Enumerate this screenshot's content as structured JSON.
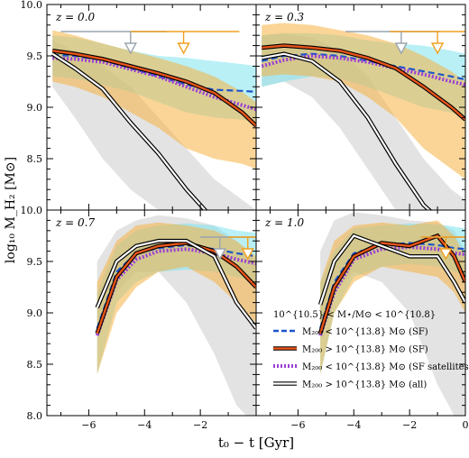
{
  "chart_data": {
    "type": "line",
    "xlabel": "t₀ − t [Gyr]",
    "ylabel": "log₁₀ M_H₂ [M⊙]",
    "xlim": [
      -7.5,
      0
    ],
    "ylim": [
      8.0,
      10.0
    ],
    "x_ticks": [
      -6,
      -4,
      -2,
      0
    ],
    "y_ticks": [
      8.0,
      8.5,
      9.0,
      9.5,
      10.0
    ],
    "grid": false,
    "colors": {
      "sf": "#1f55c8",
      "massive_sf": "#e8541a",
      "massive_sf_band": "#f5b342",
      "sf_band": "#7fe3ef",
      "satellites": "#9b3fd4",
      "all": "#000000",
      "all_band": "#d9d9d9",
      "arrow_grey": "#9aa4ad",
      "arrow_orange": "#f0a020"
    },
    "legend": {
      "placement": "bottom-right of lower-right panel",
      "title": "10^{10.5} < M⋆/M⊙ < 10^{10.8}",
      "entries": [
        {
          "key": "sf",
          "label": "M₂₀₀ < 10^{13.8} M⊙ (SF)"
        },
        {
          "key": "massive_sf",
          "label": "M₂₀₀ > 10^{13.8} M⊙ (SF)"
        },
        {
          "key": "satellites",
          "label": "M₂₀₀ < 10^{13.8} M⊙ (SF satellites)"
        },
        {
          "key": "all",
          "label": "M₂₀₀ > 10^{13.8} M⊙ (all)"
        }
      ]
    },
    "panels": [
      {
        "label": "z = 0.0",
        "arrows": {
          "grey_x": -4.5,
          "grey_range": [
            -7,
            -3.2
          ],
          "orange_x": -2.6,
          "orange_range": [
            -4.5,
            -0.6
          ]
        },
        "x": [
          -7.3,
          -6.5,
          -5.5,
          -4.5,
          -3.5,
          -2.5,
          -1.5,
          -0.5,
          0
        ],
        "series": {
          "sf": [
            9.51,
            9.5,
            9.46,
            9.38,
            9.3,
            9.22,
            9.17,
            9.16,
            9.15
          ],
          "massive_sf": [
            9.55,
            9.52,
            9.47,
            9.4,
            9.33,
            9.25,
            9.14,
            8.95,
            8.82
          ],
          "satellites": [
            9.48,
            9.47,
            9.44,
            9.37,
            9.3,
            9.2,
            9.1,
            9.02,
            8.98
          ],
          "all": [
            9.52,
            9.38,
            9.18,
            8.85,
            8.55,
            8.2,
            7.9,
            7.7,
            7.6
          ]
        },
        "bands": {
          "sf": {
            "lo": [
              9.3,
              9.28,
              9.22,
              9.15,
              9.05,
              8.95,
              8.9,
              8.88,
              8.85
            ],
            "hi": [
              9.7,
              9.68,
              9.62,
              9.55,
              9.5,
              9.48,
              9.45,
              9.42,
              9.4
            ]
          },
          "massive_sf": {
            "lo": [
              9.25,
              9.2,
              9.1,
              8.95,
              8.8,
              8.6,
              8.5,
              8.45,
              8.4
            ],
            "hi": [
              9.75,
              9.7,
              9.62,
              9.55,
              9.48,
              9.4,
              9.3,
              9.15,
              9.05
            ]
          },
          "all": {
            "lo": [
              9.2,
              8.9,
              8.5,
              8.2,
              8.0,
              7.8,
              7.7,
              7.6,
              7.55
            ],
            "hi": [
              9.65,
              9.55,
              9.4,
              9.2,
              8.9,
              8.6,
              8.3,
              8.1,
              8.0
            ]
          }
        }
      },
      {
        "label": "z = 0.3",
        "arrows": {
          "grey_x": -2.3,
          "grey_range": [
            -4.3,
            -0.9
          ],
          "orange_x": -1.0,
          "orange_range": [
            -2.7,
            0
          ]
        },
        "x": [
          -7.3,
          -6.5,
          -5.5,
          -4.5,
          -3.5,
          -2.5,
          -1.5,
          -0.5,
          0
        ],
        "series": {
          "sf": [
            9.45,
            9.5,
            9.52,
            9.5,
            9.45,
            9.4,
            9.35,
            9.3,
            9.27
          ],
          "massive_sf": [
            9.58,
            9.6,
            9.58,
            9.55,
            9.48,
            9.38,
            9.2,
            9.0,
            8.88
          ],
          "satellites": [
            9.4,
            9.46,
            9.5,
            9.48,
            9.44,
            9.38,
            9.32,
            9.25,
            9.22
          ],
          "all": [
            9.48,
            9.52,
            9.45,
            9.25,
            8.9,
            8.45,
            8.05,
            7.8,
            7.7
          ]
        },
        "bands": {
          "sf": {
            "lo": [
              9.2,
              9.25,
              9.3,
              9.28,
              9.2,
              9.1,
              9.0,
              8.95,
              8.9
            ],
            "hi": [
              9.7,
              9.72,
              9.72,
              9.7,
              9.65,
              9.62,
              9.6,
              9.55,
              9.52
            ]
          },
          "massive_sf": {
            "lo": [
              9.3,
              9.32,
              9.3,
              9.25,
              9.1,
              8.9,
              8.6,
              8.4,
              8.3
            ],
            "hi": [
              9.8,
              9.82,
              9.8,
              9.75,
              9.7,
              9.62,
              9.5,
              9.35,
              9.25
            ]
          },
          "all": {
            "lo": [
              9.2,
              9.25,
              9.1,
              8.8,
              8.4,
              8.0,
              7.8,
              7.7,
              7.65
            ],
            "hi": [
              9.7,
              9.72,
              9.68,
              9.55,
              9.3,
              8.9,
              8.5,
              8.2,
              8.1
            ]
          }
        }
      },
      {
        "label": "z = 0.7",
        "arrows": {
          "grey_x": -1.3,
          "grey_range": [
            -2.0,
            0
          ],
          "orange_x": -0.3,
          "orange_range": [
            -1.0,
            0
          ]
        },
        "x": [
          -5.7,
          -5.0,
          -4.3,
          -3.5,
          -2.5,
          -1.5,
          -0.7,
          0
        ],
        "series": {
          "sf": [
            8.85,
            9.4,
            9.58,
            9.63,
            9.66,
            9.62,
            9.58,
            9.55
          ],
          "massive_sf": [
            8.8,
            9.35,
            9.58,
            9.65,
            9.68,
            9.6,
            9.45,
            9.25
          ],
          "satellites": [
            8.78,
            9.32,
            9.52,
            9.6,
            9.62,
            9.58,
            9.52,
            9.48
          ],
          "all": [
            9.05,
            9.5,
            9.65,
            9.7,
            9.7,
            9.55,
            9.1,
            8.85
          ]
        },
        "bands": {
          "sf": {
            "lo": [
              8.4,
              9.1,
              9.3,
              9.4,
              9.42,
              9.4,
              9.35,
              9.3
            ],
            "hi": [
              9.2,
              9.65,
              9.8,
              9.85,
              9.87,
              9.85,
              9.8,
              9.78
            ]
          },
          "massive_sf": {
            "lo": [
              8.4,
              9.0,
              9.25,
              9.4,
              9.45,
              9.3,
              9.1,
              8.9
            ],
            "hi": [
              9.3,
              9.7,
              9.85,
              9.88,
              9.85,
              9.8,
              9.7,
              9.55
            ]
          },
          "all": {
            "lo": [
              8.9,
              9.2,
              9.4,
              9.4,
              9.1,
              8.6,
              8.1,
              7.9
            ],
            "hi": [
              9.5,
              9.8,
              9.9,
              9.95,
              9.92,
              9.85,
              9.7,
              9.5
            ]
          }
        }
      },
      {
        "label": "z = 1.0",
        "arrows": {
          "grey_x": null,
          "grey_range": [
            -1.6,
            0
          ],
          "orange_x": -0.7,
          "orange_range": [
            -1.6,
            0
          ]
        },
        "x": [
          -5.2,
          -4.7,
          -4.0,
          -3.0,
          -2.0,
          -1.0,
          -0.4,
          0
        ],
        "series": {
          "sf": [
            8.85,
            9.3,
            9.58,
            9.66,
            9.68,
            9.66,
            9.63,
            9.62
          ],
          "massive_sf": [
            8.8,
            9.25,
            9.55,
            9.68,
            9.65,
            9.75,
            9.55,
            9.3
          ],
          "satellites": [
            8.78,
            9.2,
            9.52,
            9.62,
            9.64,
            9.62,
            9.58,
            9.57
          ],
          "all": [
            9.08,
            9.5,
            9.75,
            9.65,
            9.55,
            9.55,
            9.3,
            9.1
          ]
        },
        "bands": {
          "sf": {
            "lo": [
              8.4,
              9.0,
              9.35,
              9.45,
              9.48,
              9.45,
              9.4,
              9.38
            ],
            "hi": [
              9.3,
              9.6,
              9.82,
              9.85,
              9.87,
              9.86,
              9.84,
              9.82
            ]
          },
          "massive_sf": {
            "lo": [
              8.4,
              9.0,
              9.3,
              9.45,
              9.4,
              9.35,
              9.2,
              9.0
            ],
            "hi": [
              9.3,
              9.7,
              9.85,
              9.88,
              9.85,
              9.9,
              9.75,
              9.55
            ]
          },
          "all": {
            "lo": [
              8.8,
              9.2,
              9.4,
              9.3,
              9.0,
              8.3,
              8.0,
              7.9
            ],
            "hi": [
              9.6,
              9.9,
              9.98,
              9.95,
              9.9,
              9.88,
              9.8,
              9.6
            ]
          }
        }
      }
    ]
  }
}
